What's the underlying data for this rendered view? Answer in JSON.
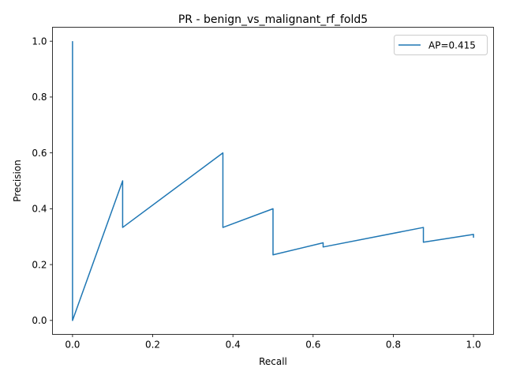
{
  "chart_data": {
    "type": "line",
    "title": "PR - benign_vs_malignant_rf_fold5",
    "xlabel": "Recall",
    "ylabel": "Precision",
    "xlim": [
      -0.05,
      1.05
    ],
    "ylim": [
      -0.05,
      1.05
    ],
    "xticks": [
      0.0,
      0.2,
      0.4,
      0.6,
      0.8,
      1.0
    ],
    "yticks": [
      0.0,
      0.2,
      0.4,
      0.6,
      0.8,
      1.0
    ],
    "xtick_labels": [
      "0.0",
      "0.2",
      "0.4",
      "0.6",
      "0.8",
      "1.0"
    ],
    "ytick_labels": [
      "0.0",
      "0.2",
      "0.4",
      "0.6",
      "0.8",
      "1.0"
    ],
    "grid": false,
    "legend_position": "upper-right",
    "series": [
      {
        "name": "AP=0.415",
        "color": "#1f77b4",
        "x": [
          0.0,
          0.0,
          0.125,
          0.125,
          0.375,
          0.375,
          0.5,
          0.5,
          0.625,
          0.625,
          0.875,
          0.875,
          1.0,
          1.0
        ],
        "y": [
          1.0,
          0.0,
          0.5,
          0.333,
          0.6,
          0.333,
          0.4,
          0.235,
          0.278,
          0.263,
          0.333,
          0.28,
          0.308,
          0.296
        ]
      }
    ]
  }
}
